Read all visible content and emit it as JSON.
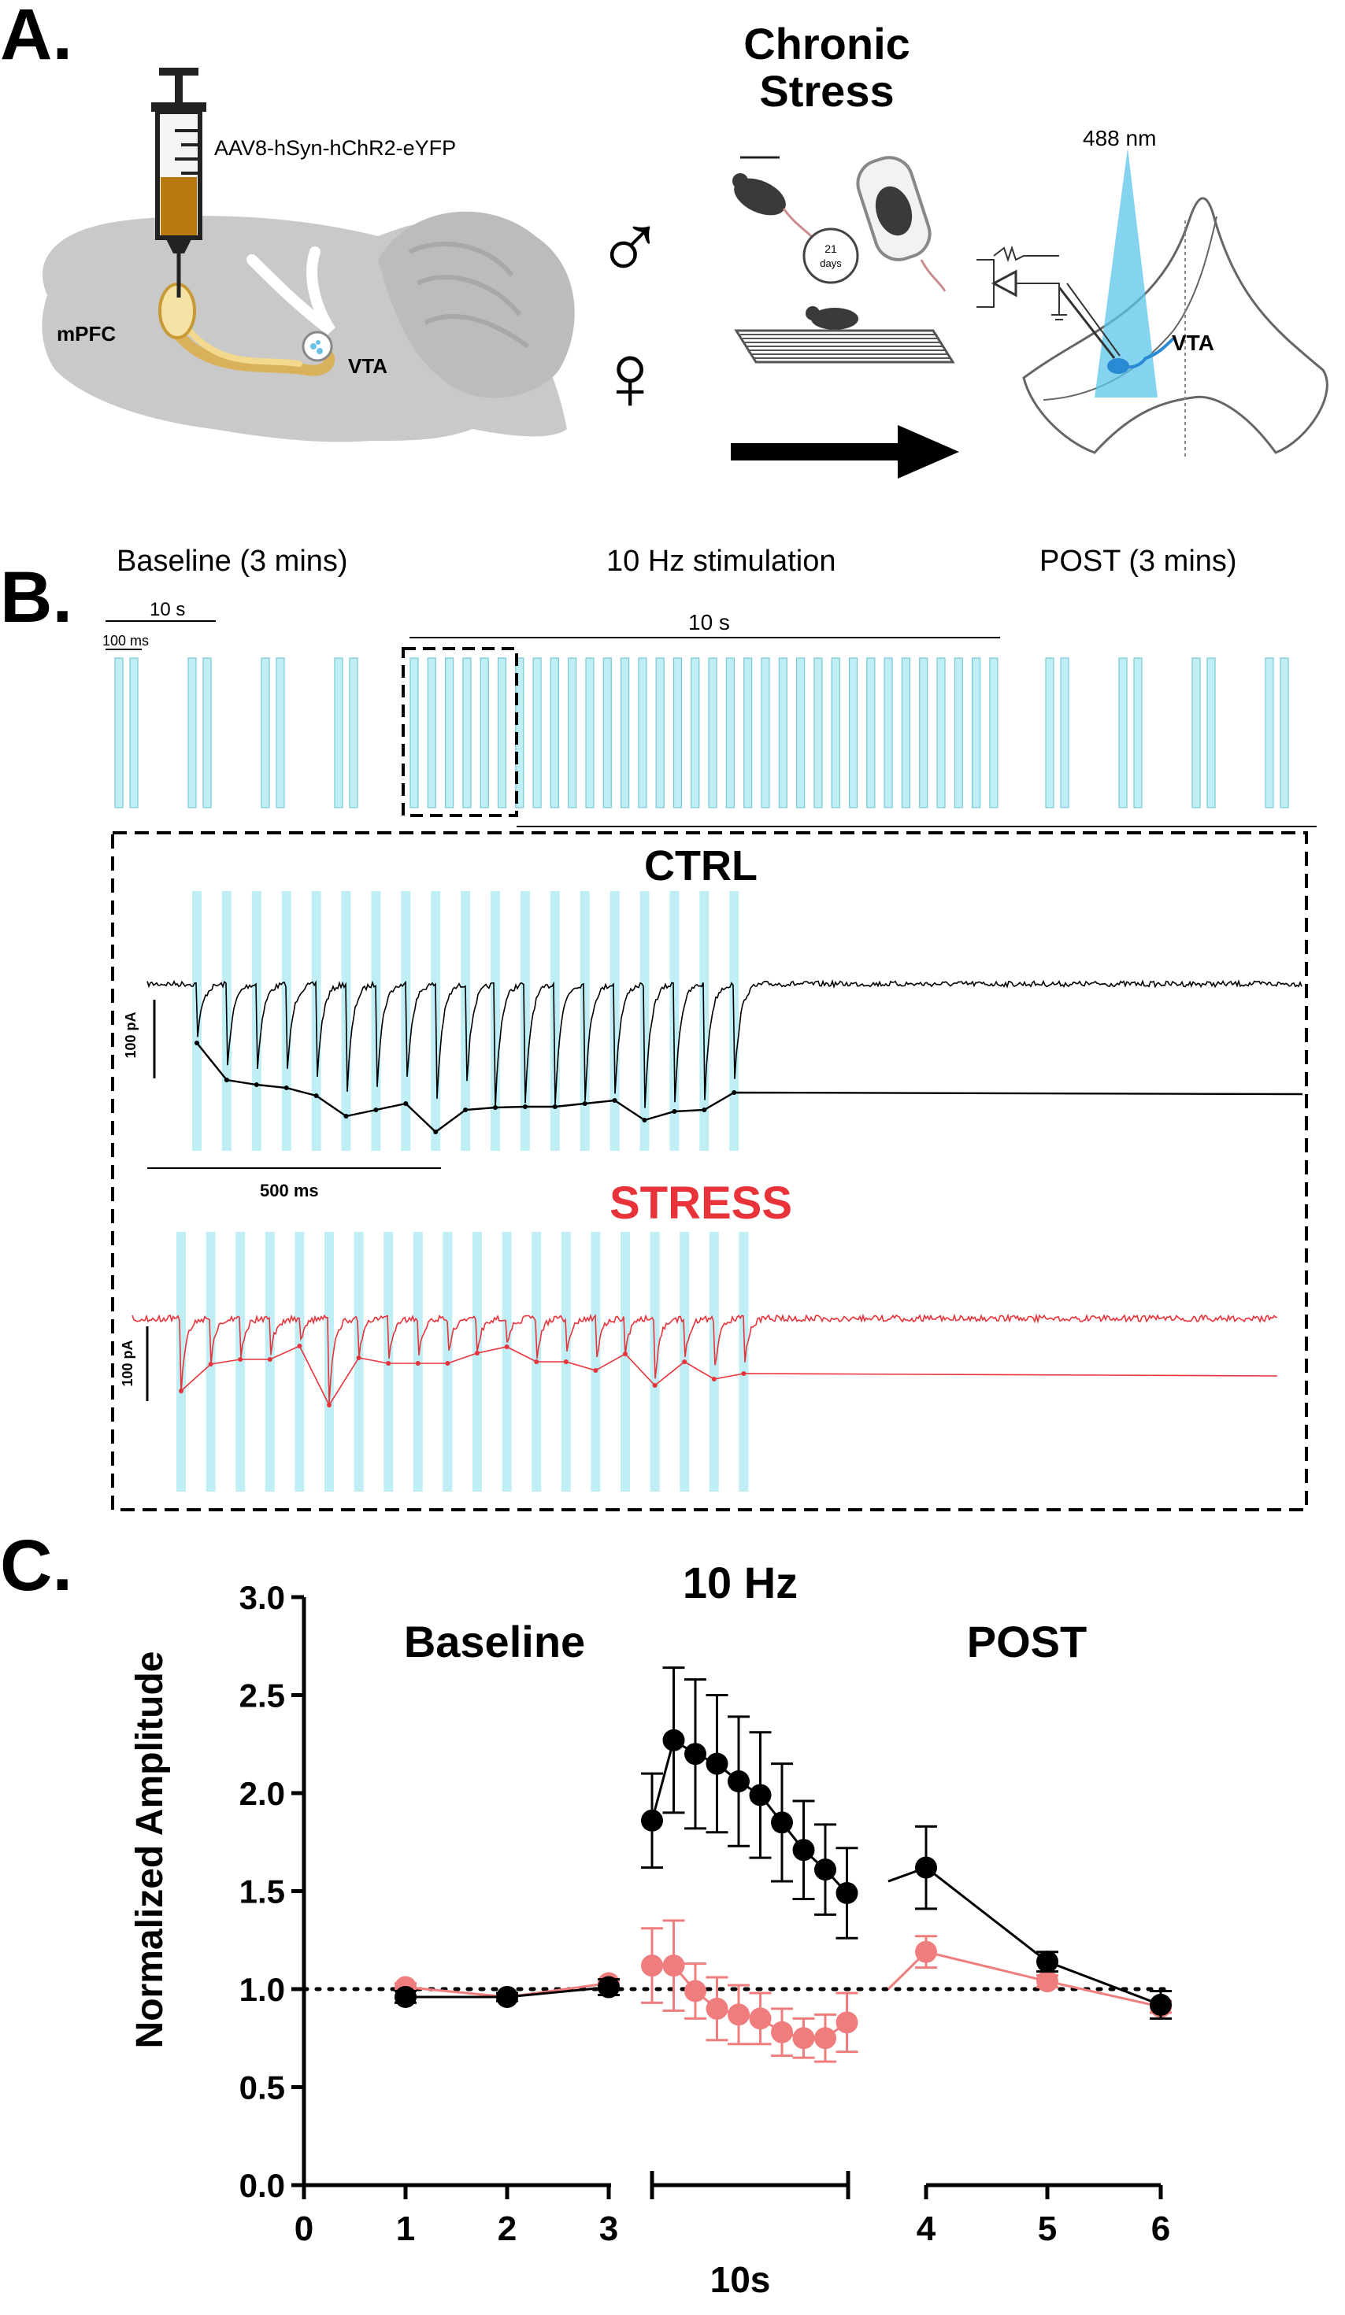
{
  "panelA": {
    "letter": "A.",
    "virus_label": "AAV8-hSyn-hChR2-eYFP",
    "mpfc_label": "mPFC",
    "vta_label": "VTA",
    "stress_title_1": "Chronic",
    "stress_title_2": "Stress",
    "days_number": "21",
    "days_word": "days",
    "laser_label": "488 nm",
    "vta_slice_label": "VTA",
    "male_symbol": "♂",
    "female_symbol": "♀"
  },
  "panelB": {
    "letter": "B.",
    "baseline_label": "Baseline (3 mins)",
    "stim_label": "10 Hz stimulation",
    "post_label": "POST (3 mins)",
    "scale_10s_left": "10 s",
    "scale_100ms": "100 ms",
    "scale_10s_top": "10 s",
    "ctrl_title": "CTRL",
    "stress_title": "STRESS",
    "scale_100pA_ctrl": "100 pA",
    "scale_100pA_stress": "100 pA",
    "scale_500ms": "500 ms",
    "colors": {
      "light": "#bfeef5",
      "ctrl": "#000000",
      "stress": "#e8333a"
    }
  },
  "chart_data": {
    "type": "scatter",
    "panel_letter": "C.",
    "title": "10 Hz",
    "ylabel": "Normalized Amplitude",
    "ylim": [
      0,
      3.0
    ],
    "yticks": [
      "0.0",
      "0.5",
      "1.0",
      "1.5",
      "2.0",
      "2.5",
      "3.0"
    ],
    "xticks": [
      "0",
      "1",
      "2",
      "3",
      "4",
      "5",
      "6"
    ],
    "group_labels": {
      "baseline": "Baseline",
      "stim": "10s",
      "post": "POST"
    },
    "baseline_line": 1.0,
    "series": [
      {
        "color": "#000000",
        "baseline": {
          "x": [
            1,
            2,
            3
          ],
          "y": [
            0.96,
            0.96,
            1.01
          ],
          "err": [
            0.03,
            0.02,
            0.04
          ]
        },
        "stim": {
          "y": [
            1.86,
            2.27,
            2.2,
            2.15,
            2.06,
            1.99,
            1.85,
            1.71,
            1.61,
            1.49
          ],
          "err": [
            0.24,
            0.37,
            0.38,
            0.35,
            0.33,
            0.32,
            0.3,
            0.25,
            0.23,
            0.23
          ]
        },
        "post": {
          "x": [
            4,
            5,
            6
          ],
          "y": [
            1.62,
            1.14,
            0.92
          ],
          "err": [
            0.21,
            0.05,
            0.07
          ]
        }
      },
      {
        "color": "#f07d7d",
        "baseline": {
          "x": [
            1,
            2,
            3
          ],
          "y": [
            1.01,
            0.96,
            1.03
          ],
          "err": [
            0.02,
            0.02,
            0.02
          ]
        },
        "stim": {
          "y": [
            1.12,
            1.12,
            0.99,
            0.9,
            0.87,
            0.85,
            0.78,
            0.75,
            0.75,
            0.83
          ],
          "err": [
            0.19,
            0.23,
            0.14,
            0.16,
            0.15,
            0.13,
            0.12,
            0.1,
            0.12,
            0.15
          ]
        },
        "post": {
          "x": [
            4,
            5,
            6
          ],
          "y": [
            1.19,
            1.04,
            0.91
          ],
          "err": [
            0.08,
            0.03,
            0.03
          ]
        }
      }
    ]
  }
}
